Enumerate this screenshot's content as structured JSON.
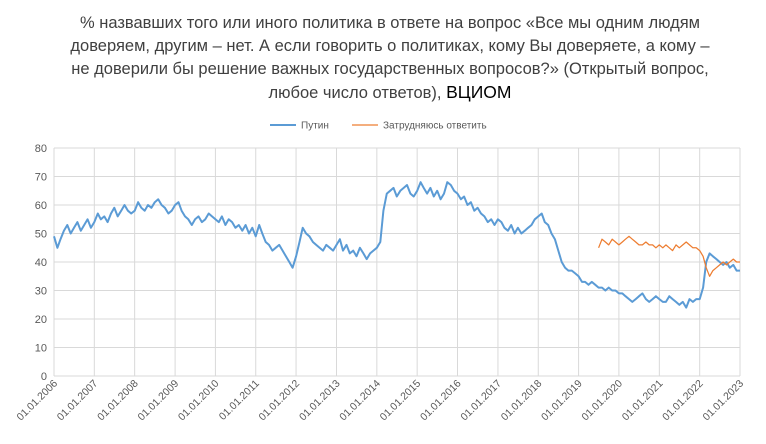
{
  "chart_data": {
    "type": "line",
    "title": "% назвавших того или иного политика в ответе на вопрос «Все мы одним людям доверяем, другим – нет. А если говорить о политиках, кому Вы доверяете, а кому – не доверили бы решение важных государственных вопросов?» (Открытый вопрос, любое число ответов),",
    "source": "ВЦИОМ",
    "ylim": [
      0,
      80
    ],
    "yticks": [
      "0",
      "10",
      "20",
      "30",
      "40",
      "50",
      "60",
      "70",
      "80"
    ],
    "xlim": [
      "2006-01-01",
      "2023-01-01"
    ],
    "xticks": [
      "01.01.2006",
      "01.01.2007",
      "01.01.2008",
      "01.01.2009",
      "01.01.2010",
      "01.01.2011",
      "01.01.2012",
      "01.01.2013",
      "01.01.2014",
      "01.01.2015",
      "01.01.2016",
      "01.01.2017",
      "01.01.2018",
      "01.01.2019",
      "01.01.2020",
      "01.01.2021",
      "01.01.2022",
      "01.01.2023"
    ],
    "grid": true,
    "legend_position": "top",
    "series": [
      {
        "name": "Путин",
        "color": "#5b9bd5",
        "points": [
          [
            "2006-01-01",
            49
          ],
          [
            "2006-02-01",
            45
          ],
          [
            "2006-03-01",
            48
          ],
          [
            "2006-04-01",
            51
          ],
          [
            "2006-05-01",
            53
          ],
          [
            "2006-06-01",
            50
          ],
          [
            "2006-07-01",
            52
          ],
          [
            "2006-08-01",
            54
          ],
          [
            "2006-09-01",
            51
          ],
          [
            "2006-10-01",
            53
          ],
          [
            "2006-11-01",
            55
          ],
          [
            "2006-12-01",
            52
          ],
          [
            "2007-01-01",
            54
          ],
          [
            "2007-02-01",
            57
          ],
          [
            "2007-03-01",
            55
          ],
          [
            "2007-04-01",
            56
          ],
          [
            "2007-05-01",
            54
          ],
          [
            "2007-06-01",
            57
          ],
          [
            "2007-07-01",
            59
          ],
          [
            "2007-08-01",
            56
          ],
          [
            "2007-09-01",
            58
          ],
          [
            "2007-10-01",
            60
          ],
          [
            "2007-11-01",
            58
          ],
          [
            "2007-12-01",
            57
          ],
          [
            "2008-01-01",
            58
          ],
          [
            "2008-02-01",
            61
          ],
          [
            "2008-03-01",
            59
          ],
          [
            "2008-04-01",
            58
          ],
          [
            "2008-05-01",
            60
          ],
          [
            "2008-06-01",
            59
          ],
          [
            "2008-07-01",
            61
          ],
          [
            "2008-08-01",
            62
          ],
          [
            "2008-09-01",
            60
          ],
          [
            "2008-10-01",
            59
          ],
          [
            "2008-11-01",
            57
          ],
          [
            "2008-12-01",
            58
          ],
          [
            "2009-01-01",
            60
          ],
          [
            "2009-02-01",
            61
          ],
          [
            "2009-03-01",
            58
          ],
          [
            "2009-04-01",
            56
          ],
          [
            "2009-05-01",
            55
          ],
          [
            "2009-06-01",
            53
          ],
          [
            "2009-07-01",
            55
          ],
          [
            "2009-08-01",
            56
          ],
          [
            "2009-09-01",
            54
          ],
          [
            "2009-10-01",
            55
          ],
          [
            "2009-11-01",
            57
          ],
          [
            "2009-12-01",
            56
          ],
          [
            "2010-01-01",
            55
          ],
          [
            "2010-02-01",
            54
          ],
          [
            "2010-03-01",
            56
          ],
          [
            "2010-04-01",
            53
          ],
          [
            "2010-05-01",
            55
          ],
          [
            "2010-06-01",
            54
          ],
          [
            "2010-07-01",
            52
          ],
          [
            "2010-08-01",
            53
          ],
          [
            "2010-09-01",
            51
          ],
          [
            "2010-10-01",
            53
          ],
          [
            "2010-11-01",
            50
          ],
          [
            "2010-12-01",
            52
          ],
          [
            "2011-01-01",
            49
          ],
          [
            "2011-02-01",
            53
          ],
          [
            "2011-03-01",
            50
          ],
          [
            "2011-04-01",
            47
          ],
          [
            "2011-05-01",
            46
          ],
          [
            "2011-06-01",
            44
          ],
          [
            "2011-07-01",
            45
          ],
          [
            "2011-08-01",
            46
          ],
          [
            "2011-09-01",
            44
          ],
          [
            "2011-10-01",
            42
          ],
          [
            "2011-11-01",
            40
          ],
          [
            "2011-12-01",
            38
          ],
          [
            "2012-01-01",
            42
          ],
          [
            "2012-02-01",
            47
          ],
          [
            "2012-03-01",
            52
          ],
          [
            "2012-04-01",
            50
          ],
          [
            "2012-05-01",
            49
          ],
          [
            "2012-06-01",
            47
          ],
          [
            "2012-07-01",
            46
          ],
          [
            "2012-08-01",
            45
          ],
          [
            "2012-09-01",
            44
          ],
          [
            "2012-10-01",
            46
          ],
          [
            "2012-11-01",
            45
          ],
          [
            "2012-12-01",
            44
          ],
          [
            "2013-01-01",
            46
          ],
          [
            "2013-02-01",
            48
          ],
          [
            "2013-03-01",
            44
          ],
          [
            "2013-04-01",
            46
          ],
          [
            "2013-05-01",
            43
          ],
          [
            "2013-06-01",
            44
          ],
          [
            "2013-07-01",
            42
          ],
          [
            "2013-08-01",
            45
          ],
          [
            "2013-09-01",
            43
          ],
          [
            "2013-10-01",
            41
          ],
          [
            "2013-11-01",
            43
          ],
          [
            "2013-12-01",
            44
          ],
          [
            "2014-01-01",
            45
          ],
          [
            "2014-02-01",
            47
          ],
          [
            "2014-03-01",
            58
          ],
          [
            "2014-04-01",
            64
          ],
          [
            "2014-05-01",
            65
          ],
          [
            "2014-06-01",
            66
          ],
          [
            "2014-07-01",
            63
          ],
          [
            "2014-08-01",
            65
          ],
          [
            "2014-09-01",
            66
          ],
          [
            "2014-10-01",
            67
          ],
          [
            "2014-11-01",
            64
          ],
          [
            "2014-12-01",
            63
          ],
          [
            "2015-01-01",
            65
          ],
          [
            "2015-02-01",
            68
          ],
          [
            "2015-03-01",
            66
          ],
          [
            "2015-04-01",
            64
          ],
          [
            "2015-05-01",
            66
          ],
          [
            "2015-06-01",
            63
          ],
          [
            "2015-07-01",
            65
          ],
          [
            "2015-08-01",
            62
          ],
          [
            "2015-09-01",
            64
          ],
          [
            "2015-10-01",
            68
          ],
          [
            "2015-11-01",
            67
          ],
          [
            "2015-12-01",
            65
          ],
          [
            "2016-01-01",
            64
          ],
          [
            "2016-02-01",
            62
          ],
          [
            "2016-03-01",
            63
          ],
          [
            "2016-04-01",
            60
          ],
          [
            "2016-05-01",
            61
          ],
          [
            "2016-06-01",
            58
          ],
          [
            "2016-07-01",
            59
          ],
          [
            "2016-08-01",
            57
          ],
          [
            "2016-09-01",
            56
          ],
          [
            "2016-10-01",
            54
          ],
          [
            "2016-11-01",
            55
          ],
          [
            "2016-12-01",
            53
          ],
          [
            "2017-01-01",
            55
          ],
          [
            "2017-02-01",
            54
          ],
          [
            "2017-03-01",
            52
          ],
          [
            "2017-04-01",
            51
          ],
          [
            "2017-05-01",
            53
          ],
          [
            "2017-06-01",
            50
          ],
          [
            "2017-07-01",
            52
          ],
          [
            "2017-08-01",
            50
          ],
          [
            "2017-09-01",
            51
          ],
          [
            "2017-10-01",
            52
          ],
          [
            "2017-11-01",
            53
          ],
          [
            "2017-12-01",
            55
          ],
          [
            "2018-01-01",
            56
          ],
          [
            "2018-02-01",
            57
          ],
          [
            "2018-03-01",
            54
          ],
          [
            "2018-04-01",
            53
          ],
          [
            "2018-05-01",
            50
          ],
          [
            "2018-06-01",
            48
          ],
          [
            "2018-07-01",
            44
          ],
          [
            "2018-08-01",
            40
          ],
          [
            "2018-09-01",
            38
          ],
          [
            "2018-10-01",
            37
          ],
          [
            "2018-11-01",
            37
          ],
          [
            "2018-12-01",
            36
          ],
          [
            "2019-01-01",
            35
          ],
          [
            "2019-02-01",
            33
          ],
          [
            "2019-03-01",
            33
          ],
          [
            "2019-04-01",
            32
          ],
          [
            "2019-05-01",
            33
          ],
          [
            "2019-06-01",
            32
          ],
          [
            "2019-07-01",
            31
          ],
          [
            "2019-08-01",
            31
          ],
          [
            "2019-09-01",
            30
          ],
          [
            "2019-10-01",
            31
          ],
          [
            "2019-11-01",
            30
          ],
          [
            "2019-12-01",
            30
          ],
          [
            "2020-01-01",
            29
          ],
          [
            "2020-02-01",
            29
          ],
          [
            "2020-03-01",
            28
          ],
          [
            "2020-04-01",
            27
          ],
          [
            "2020-05-01",
            26
          ],
          [
            "2020-06-01",
            27
          ],
          [
            "2020-07-01",
            28
          ],
          [
            "2020-08-01",
            29
          ],
          [
            "2020-09-01",
            27
          ],
          [
            "2020-10-01",
            26
          ],
          [
            "2020-11-01",
            27
          ],
          [
            "2020-12-01",
            28
          ],
          [
            "2021-01-01",
            27
          ],
          [
            "2021-02-01",
            26
          ],
          [
            "2021-03-01",
            26
          ],
          [
            "2021-04-01",
            28
          ],
          [
            "2021-05-01",
            27
          ],
          [
            "2021-06-01",
            26
          ],
          [
            "2021-07-01",
            25
          ],
          [
            "2021-08-01",
            26
          ],
          [
            "2021-09-01",
            24
          ],
          [
            "2021-10-01",
            27
          ],
          [
            "2021-11-01",
            26
          ],
          [
            "2021-12-01",
            27
          ],
          [
            "2022-01-01",
            27
          ],
          [
            "2022-02-01",
            31
          ],
          [
            "2022-03-01",
            40
          ],
          [
            "2022-04-01",
            43
          ],
          [
            "2022-05-01",
            42
          ],
          [
            "2022-06-01",
            41
          ],
          [
            "2022-07-01",
            40
          ],
          [
            "2022-08-01",
            39
          ],
          [
            "2022-09-01",
            40
          ],
          [
            "2022-10-01",
            38
          ],
          [
            "2022-11-01",
            39
          ],
          [
            "2022-12-01",
            37
          ],
          [
            "2023-01-01",
            37
          ]
        ]
      },
      {
        "name": "Затрудняюсь ответить",
        "color": "#ed7d31",
        "points": [
          [
            "2019-07-01",
            45
          ],
          [
            "2019-08-01",
            48
          ],
          [
            "2019-09-01",
            47
          ],
          [
            "2019-10-01",
            46
          ],
          [
            "2019-11-01",
            48
          ],
          [
            "2019-12-01",
            47
          ],
          [
            "2020-01-01",
            46
          ],
          [
            "2020-02-01",
            47
          ],
          [
            "2020-03-01",
            48
          ],
          [
            "2020-04-01",
            49
          ],
          [
            "2020-05-01",
            48
          ],
          [
            "2020-06-01",
            47
          ],
          [
            "2020-07-01",
            46
          ],
          [
            "2020-08-01",
            46
          ],
          [
            "2020-09-01",
            47
          ],
          [
            "2020-10-01",
            46
          ],
          [
            "2020-11-01",
            46
          ],
          [
            "2020-12-01",
            45
          ],
          [
            "2021-01-01",
            46
          ],
          [
            "2021-02-01",
            45
          ],
          [
            "2021-03-01",
            46
          ],
          [
            "2021-04-01",
            45
          ],
          [
            "2021-05-01",
            44
          ],
          [
            "2021-06-01",
            46
          ],
          [
            "2021-07-01",
            45
          ],
          [
            "2021-08-01",
            46
          ],
          [
            "2021-09-01",
            47
          ],
          [
            "2021-10-01",
            46
          ],
          [
            "2021-11-01",
            45
          ],
          [
            "2021-12-01",
            45
          ],
          [
            "2022-01-01",
            44
          ],
          [
            "2022-02-01",
            42
          ],
          [
            "2022-03-01",
            38
          ],
          [
            "2022-04-01",
            35
          ],
          [
            "2022-05-01",
            37
          ],
          [
            "2022-06-01",
            38
          ],
          [
            "2022-07-01",
            39
          ],
          [
            "2022-08-01",
            40
          ],
          [
            "2022-09-01",
            39
          ],
          [
            "2022-10-01",
            40
          ],
          [
            "2022-11-01",
            41
          ],
          [
            "2022-12-01",
            40
          ],
          [
            "2023-01-01",
            40
          ]
        ]
      }
    ]
  }
}
